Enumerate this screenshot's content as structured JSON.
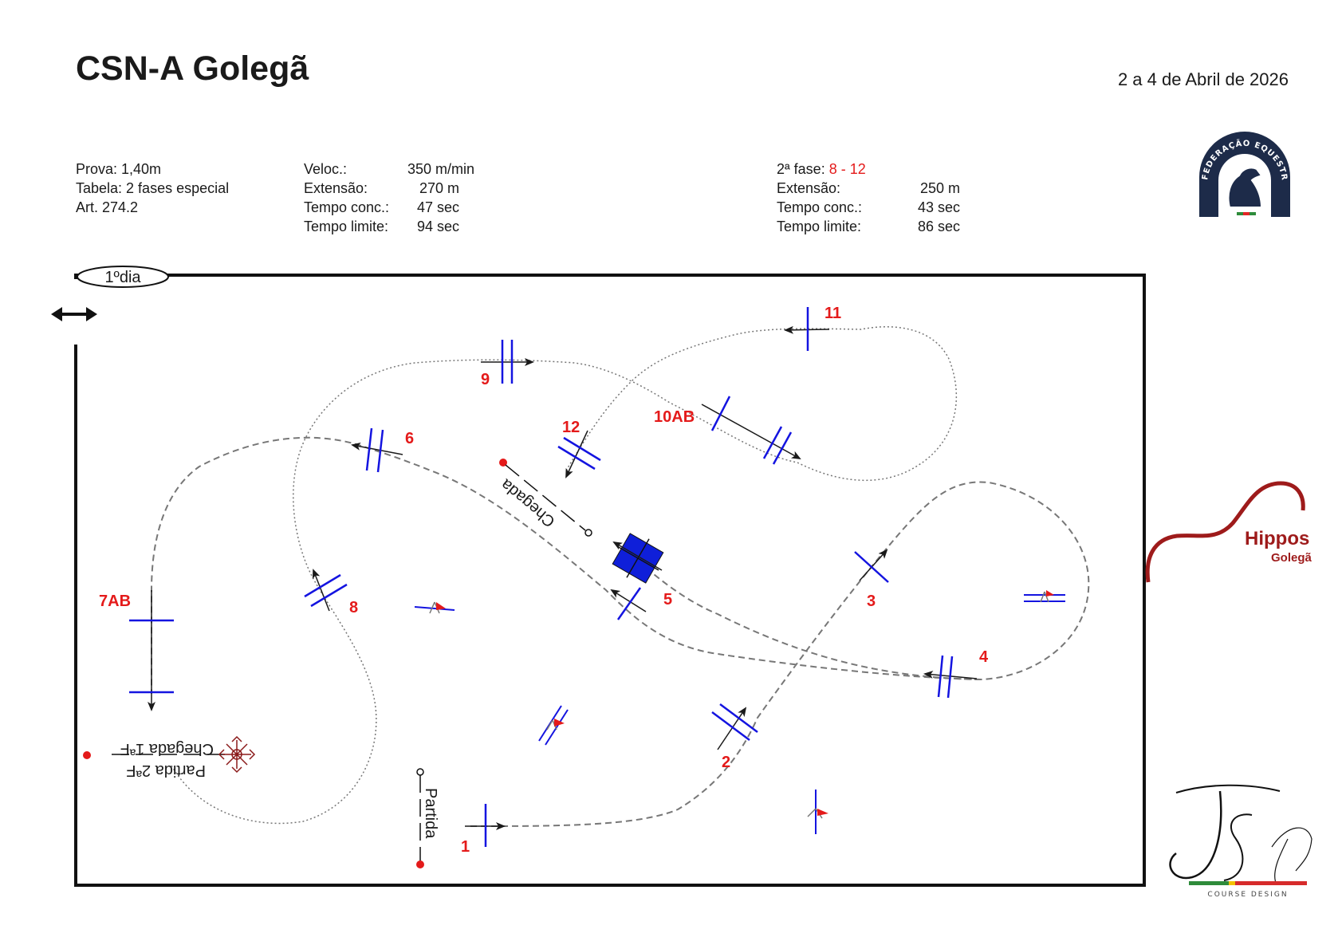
{
  "header": {
    "title": "CSN-A Golegã",
    "date": "2 a 4 de Abril de 2026"
  },
  "info_left": {
    "prova": "Prova: 1,40m",
    "tabela": "Tabela: 2 fases especial",
    "art": "Art. 274.2"
  },
  "phase1": {
    "speed_label": "Veloc.:",
    "speed_value": "350 m/min",
    "length_label": "Extensão:",
    "length_value": "270 m",
    "time_label": "Tempo conc.:",
    "time_value": "47 sec",
    "limit_label": "Tempo limite:",
    "limit_value": "94 sec"
  },
  "phase2": {
    "title_prefix": "2ª fase:",
    "title_range": "8 - 12",
    "length_label": "Extensão:",
    "length_value": "250 m",
    "time_label": "Tempo conc.:",
    "time_value": "43 sec",
    "limit_label": "Tempo limite:",
    "limit_value": "86 sec"
  },
  "arena": {
    "day_tag": "1ºdia",
    "start_label": "Partida",
    "finish_label": "Chegada",
    "start2_label": "Partida 2ªF",
    "finish1_label": "Chegada 1ªF"
  },
  "obstacles": [
    "1",
    "2",
    "3",
    "4",
    "5",
    "6",
    "7AB",
    "8",
    "9",
    "10AB",
    "11",
    "12"
  ],
  "logos": {
    "fep": "FEDERAÇÃO EQUESTRE PORTUGUESA",
    "hippos_name": "Hippos",
    "hippos_place": "Golegã",
    "designer": "COURSE DESIGN"
  },
  "colors": {
    "fence": "#1414e0",
    "label": "#e41a1a",
    "box": "#0f1fd9",
    "hippos": "#9e1b1b"
  }
}
